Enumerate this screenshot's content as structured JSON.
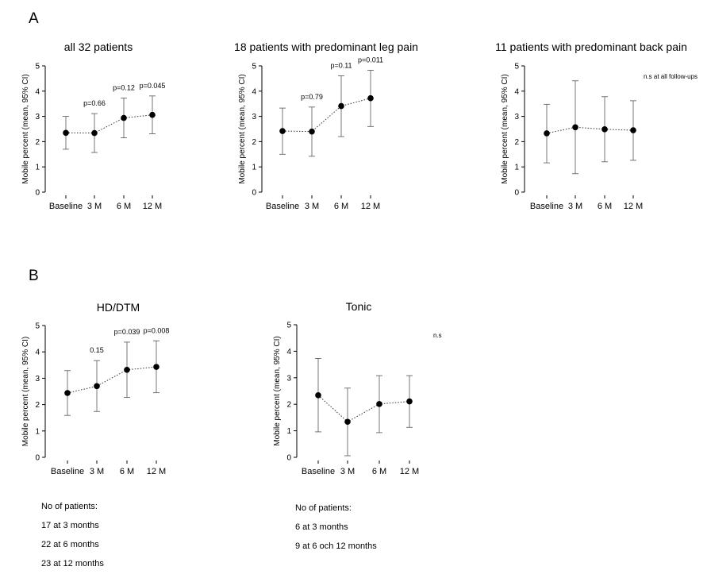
{
  "panel_labels": [
    "A",
    "B"
  ],
  "notes": [
    {
      "lines": [
        "No of patients:",
        "17 at 3 months",
        "22 at 6 months",
        "23 at 12 months"
      ]
    },
    {
      "lines": [
        "No of patients:",
        "6 at 3 months",
        "9 at 6 och 12 months"
      ]
    }
  ],
  "chart_data": [
    {
      "type": "scatter",
      "title": "all 32 patients",
      "ylabel": "Mobile percent (mean, 95% CI)",
      "ylim": [
        0,
        5
      ],
      "yticks": [
        "0",
        "1",
        "2",
        "3",
        "4",
        "5"
      ],
      "categories": [
        "Baseline",
        "3 M",
        "6 M",
        "12 M"
      ],
      "mean": [
        2.35,
        2.34,
        2.94,
        3.06
      ],
      "ci_low": [
        1.7,
        1.57,
        2.15,
        2.31
      ],
      "ci_high": [
        3.0,
        3.11,
        3.73,
        3.81
      ],
      "p_labels": [
        "",
        "p=0.66",
        "p=0.12",
        "p=0.045"
      ],
      "corner_note": ""
    },
    {
      "type": "scatter",
      "title": "18 patients with predominant leg pain",
      "ylabel": "Mobile percent (mean, 95% CI)",
      "ylim": [
        0,
        5
      ],
      "yticks": [
        "0",
        "1",
        "2",
        "3",
        "4",
        "5"
      ],
      "categories": [
        "Baseline",
        "3 M",
        "6 M",
        "12 M"
      ],
      "mean": [
        2.42,
        2.4,
        3.41,
        3.72
      ],
      "ci_low": [
        1.5,
        1.42,
        2.2,
        2.6
      ],
      "ci_high": [
        3.33,
        3.37,
        4.61,
        4.83
      ],
      "p_labels": [
        "",
        "p=0.79",
        "p=0.11",
        "p=0.011"
      ],
      "corner_note": ""
    },
    {
      "type": "scatter",
      "title": "11 patients with predominant back pain",
      "ylabel": "Mobile percent (mean, 95% CI)",
      "ylim": [
        0,
        5
      ],
      "yticks": [
        "0",
        "1",
        "2",
        "3",
        "4",
        "5"
      ],
      "categories": [
        "Baseline",
        "3 M",
        "6 M",
        "12 M"
      ],
      "mean": [
        2.33,
        2.57,
        2.49,
        2.45
      ],
      "ci_low": [
        1.16,
        0.73,
        1.2,
        1.26
      ],
      "ci_high": [
        3.48,
        4.41,
        3.78,
        3.62
      ],
      "p_labels": [
        "",
        "",
        "",
        ""
      ],
      "corner_note": "n.s at all follow-ups"
    },
    {
      "type": "scatter",
      "title": "HD/DTM",
      "ylabel": "Mobile percent (mean, 95% CI)",
      "ylim": [
        0,
        5
      ],
      "yticks": [
        "0",
        "1",
        "2",
        "3",
        "4",
        "5"
      ],
      "categories": [
        "Baseline",
        "3 M",
        "6 M",
        "12 M"
      ],
      "mean": [
        2.44,
        2.7,
        3.32,
        3.43
      ],
      "ci_low": [
        1.59,
        1.74,
        2.27,
        2.45
      ],
      "ci_high": [
        3.29,
        3.67,
        4.37,
        4.42
      ],
      "p_labels": [
        "",
        "0.15",
        "p=0.039",
        "p=0.008"
      ],
      "corner_note": ""
    },
    {
      "type": "scatter",
      "title": "Tonic",
      "ylabel": "Mobile percent (mean, 95% CI)",
      "ylim": [
        0,
        5
      ],
      "yticks": [
        "0",
        "1",
        "2",
        "3",
        "4",
        "5"
      ],
      "categories": [
        "Baseline",
        "3 M",
        "6 M",
        "12 M"
      ],
      "mean": [
        2.34,
        1.34,
        2.01,
        2.11
      ],
      "ci_low": [
        0.96,
        0.06,
        0.93,
        1.13
      ],
      "ci_high": [
        3.73,
        2.61,
        3.08,
        3.08
      ],
      "p_labels": [
        "",
        "",
        "",
        ""
      ],
      "corner_note": "n.s"
    }
  ]
}
